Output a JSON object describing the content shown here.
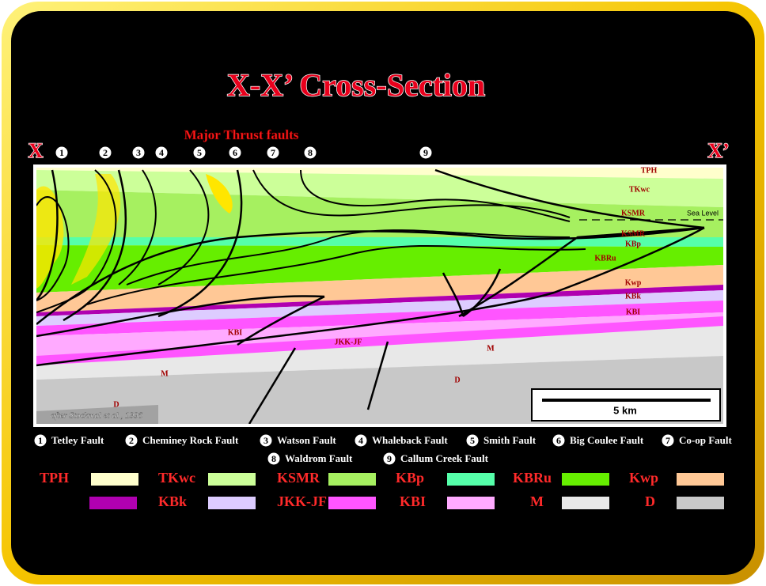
{
  "title": "X-X’ Cross-Section",
  "subtitle": "Major Thrust faults",
  "x_start": "X",
  "x_end": "X’",
  "section_labels": [
    "TPH",
    "TKwc",
    "KSMR",
    "Sea Level",
    "KSMR",
    "KBp",
    "KBRu",
    "Kwp",
    "KBk",
    "KBI",
    "KBI",
    "JKK-JF",
    "M",
    "M",
    "D",
    "D"
  ],
  "citation": "after Stockmal et al., 1996",
  "scale": "5 km",
  "faults": [
    {
      "number": 1,
      "name": "Tetley Fault"
    },
    {
      "number": 2,
      "name": "Cheminey Rock Fault"
    },
    {
      "number": 3,
      "name": "Watson Fault"
    },
    {
      "number": 4,
      "name": "Whaleback Fault"
    },
    {
      "number": 5,
      "name": "Smith Fault"
    },
    {
      "number": 6,
      "name": "Big Coulee Fault"
    },
    {
      "number": 7,
      "name": "Co-op Fault"
    },
    {
      "number": 8,
      "name": "Waldrom Fault"
    },
    {
      "number": 9,
      "name": "Callum Creek Fault"
    }
  ],
  "legend": [
    {
      "name": "TPH",
      "color": "#ffffcc"
    },
    {
      "name": "TKwc",
      "color": "#ccff99"
    },
    {
      "name": "KSMR",
      "color": "#a6f060"
    },
    {
      "name": "KBp",
      "color": "#55ffaa"
    },
    {
      "name": "KBRu",
      "color": "#66ee00"
    },
    {
      "name": "Kwp",
      "color": "#ffc896"
    },
    {
      "color": "#b000b0"
    },
    {
      "name": "KBk",
      "color": "#ddccff"
    },
    {
      "name": "JKK-JF",
      "color": "#ff55ff"
    },
    {
      "name": "KBI",
      "color": "#ffaaff"
    },
    {
      "name": "M",
      "color": "#e8e8e8"
    },
    {
      "name": "D",
      "color": "#c8c8c8"
    }
  ]
}
